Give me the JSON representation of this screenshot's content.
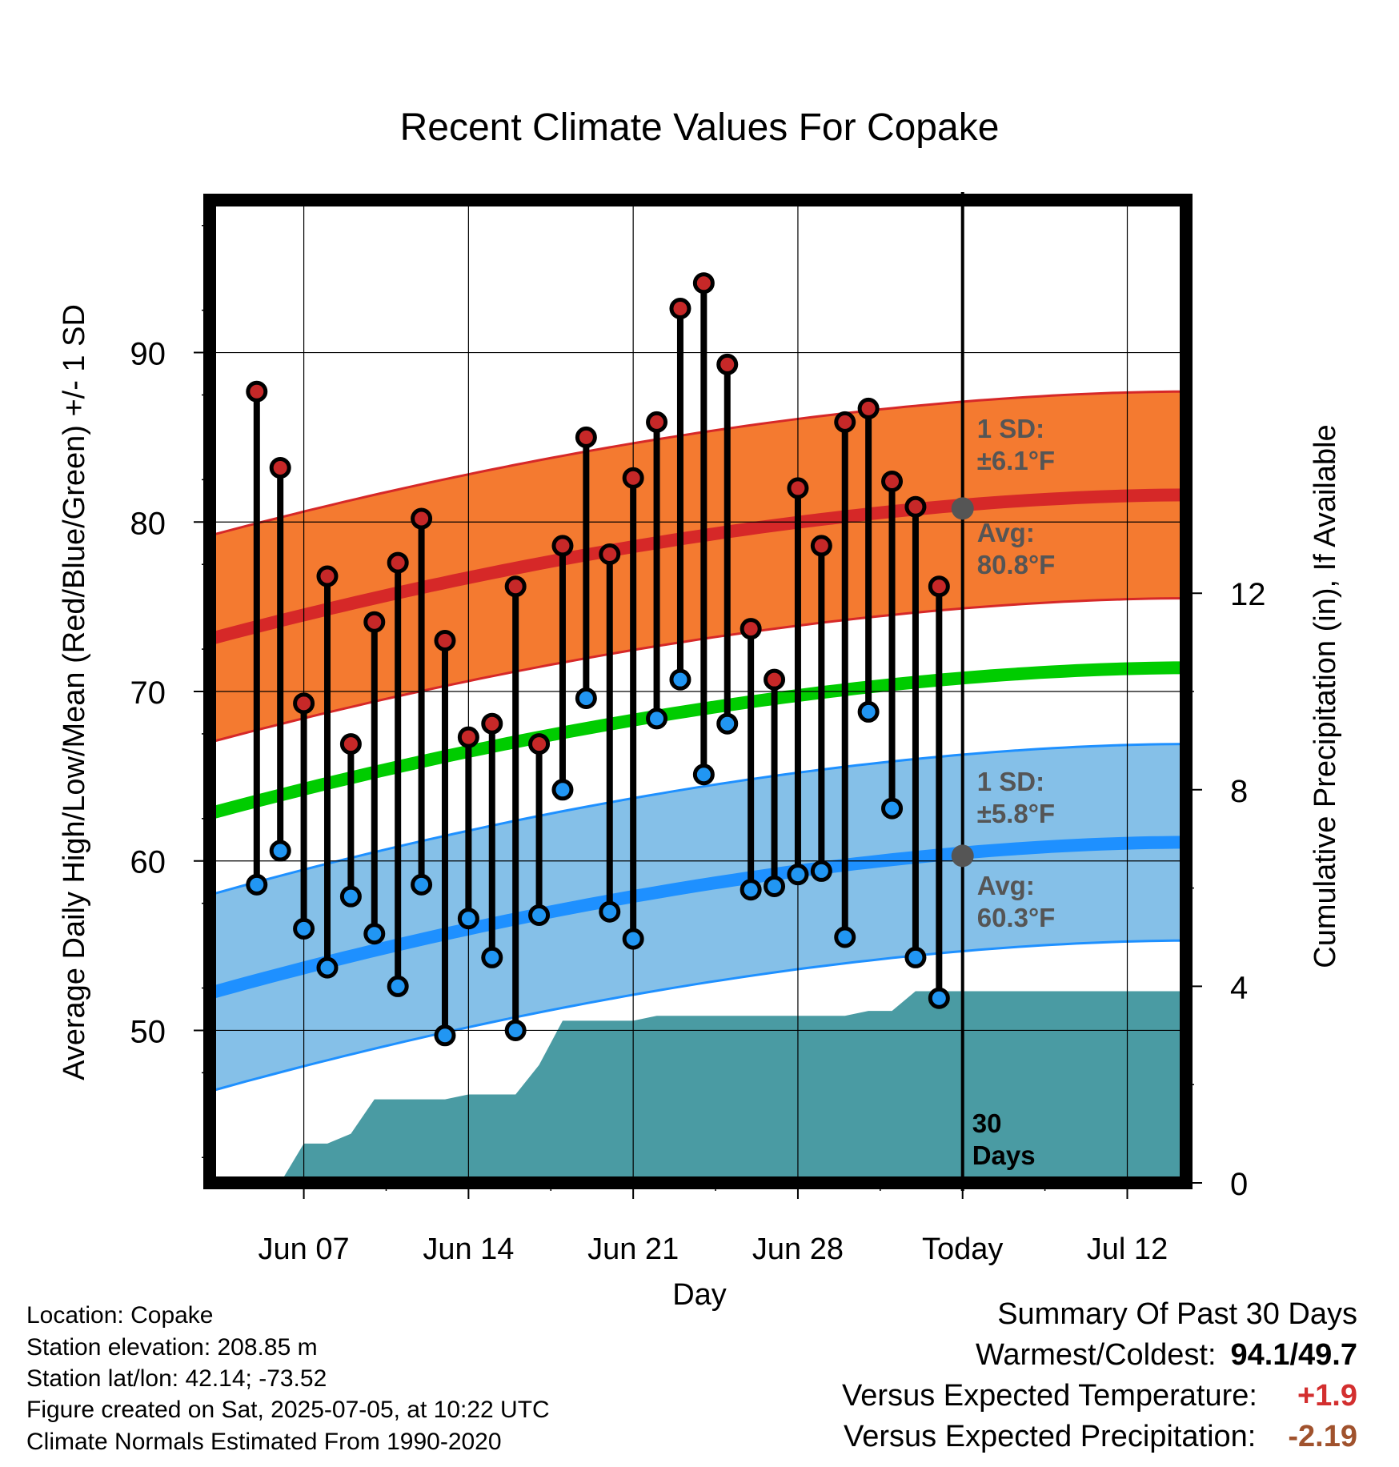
{
  "chart_data": {
    "type": "line",
    "title": "Recent Climate Values For Copake",
    "xlabel": "Day",
    "ylabel": "Average Daily High/Low/Mean (Red/Blue/Green) +/- 1 SD",
    "y2label": "Cumulative Precipitation (in), If Available",
    "ylim": [
      41,
      99
    ],
    "y2lim": [
      0,
      20
    ],
    "yticks": [
      "50",
      "60",
      "70",
      "80",
      "90"
    ],
    "y2ticks": [
      "0",
      "4",
      "8",
      "12"
    ],
    "xticks": [
      "Jun 07",
      "Jun 14",
      "Jun 21",
      "Jun 28",
      "Today",
      "Jul 12"
    ],
    "xlim_days": [
      -32,
      9.5
    ],
    "xtick_days": [
      -28,
      -21,
      -14,
      -7,
      0,
      7
    ],
    "grid": true,
    "x_days": [
      -30,
      -29,
      -28,
      -27,
      -26,
      -25,
      -24,
      -23,
      -22,
      -21,
      -20,
      -19,
      -18,
      -17,
      -16,
      -15,
      -14,
      -13,
      -12,
      -11,
      -10,
      -9,
      -8,
      -7,
      -6,
      -5,
      -4,
      -3,
      -2,
      -1
    ],
    "series": [
      {
        "name": "Red",
        "values": [
          87.7,
          83.2,
          69.3,
          76.8,
          66.9,
          74.1,
          77.6,
          80.2,
          73.0,
          67.3,
          68.1,
          76.2,
          66.9,
          78.6,
          85.0,
          78.1,
          82.6,
          85.9,
          92.6,
          94.1,
          89.3,
          73.7,
          70.7,
          82.0,
          78.6,
          85.9,
          86.7,
          82.4,
          80.9,
          76.2
        ]
      },
      {
        "name": "Blue",
        "values": [
          58.6,
          60.6,
          56.0,
          53.7,
          57.9,
          55.7,
          52.6,
          58.6,
          49.7,
          56.6,
          54.3,
          50.0,
          56.8,
          64.2,
          69.6,
          57.0,
          55.4,
          68.4,
          70.7,
          65.1,
          68.1,
          58.3,
          58.5,
          59.2,
          59.4,
          55.5,
          68.8,
          63.1,
          54.3,
          51.9
        ]
      }
    ],
    "normals": {
      "high_avg": [
        73.1,
        81.6
      ],
      "high_sd": 6.1,
      "low_avg": [
        52.2,
        61.1
      ],
      "low_sd": 5.8,
      "mean_avg": [
        62.8,
        71.4
      ]
    },
    "precip_cumulative": {
      "x": [
        -30,
        -29,
        -28,
        -27,
        -26,
        -25,
        -24,
        -23,
        -22,
        -21,
        -20,
        -19,
        -18,
        -17,
        -16,
        -15,
        -14,
        -13,
        -12,
        -11,
        -10,
        -9,
        -8,
        -7,
        -6,
        -5,
        -4,
        -3,
        -2,
        -1,
        0,
        9.5
      ],
      "values": [
        0,
        0,
        0.8,
        0.8,
        1.0,
        1.7,
        1.7,
        1.7,
        1.7,
        1.8,
        1.8,
        1.8,
        2.4,
        3.3,
        3.3,
        3.3,
        3.3,
        3.4,
        3.4,
        3.4,
        3.4,
        3.4,
        3.4,
        3.4,
        3.4,
        3.4,
        3.5,
        3.5,
        3.9,
        3.9,
        3.9,
        3.9
      ]
    },
    "annotations": {
      "high_sd": [
        "1 SD:",
        "±6.1°F"
      ],
      "high_avg": [
        "Avg:",
        "80.8°F"
      ],
      "low_sd": [
        "1 SD:",
        "±5.8°F"
      ],
      "low_avg": [
        "Avg:",
        "60.3°F"
      ],
      "period": [
        "30",
        "Days"
      ],
      "today_high": 80.8,
      "today_low": 60.3
    },
    "colors": {
      "high_band": "#f47a30",
      "high_line": "#d62828",
      "low_band": "#85c0e8",
      "low_line": "#1e90ff",
      "mean_line": "#00cc00",
      "precip": "#4a9ba3",
      "high_dot": "#c62828",
      "low_dot": "#2196f3",
      "annotation_text": "#555555",
      "today_marker": "#555555"
    }
  },
  "footer": {
    "location": "Location: Copake",
    "elevation": "Station elevation: 208.85 m",
    "latlon": "Station lat/lon: 42.14; -73.52",
    "created": "Figure created on Sat, 2025-07-05, at 10:22 UTC",
    "normals": "Climate Normals Estimated From 1990-2020"
  },
  "summary": {
    "title": "Summary Of Past 30 Days",
    "warm_cold_label": "Warmest/Coldest:",
    "warm_cold_value": "94.1/49.7",
    "temp_label": "Versus Expected Temperature:",
    "temp_value": "+1.9",
    "temp_color": "#d32f2f",
    "precip_label": "Versus Expected Precipitation:",
    "precip_value": "-2.19",
    "precip_color": "#a0522d"
  }
}
